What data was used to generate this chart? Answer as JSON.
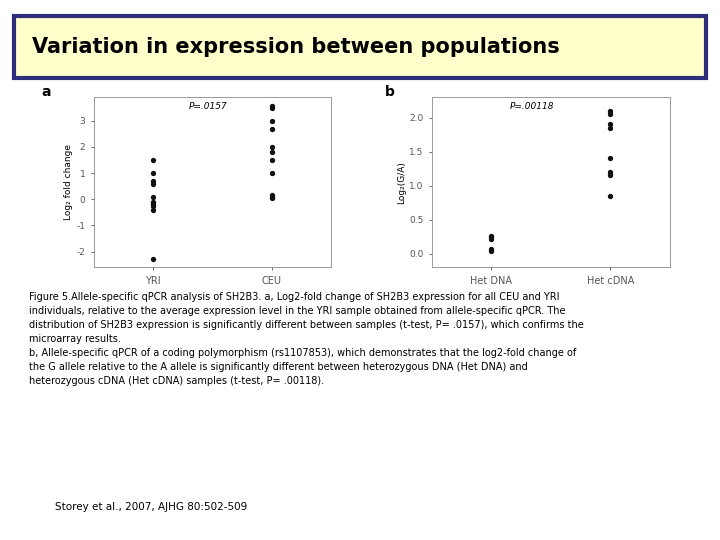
{
  "title": "Variation in expression between populations",
  "title_bg": "#ffffcc",
  "title_border": "#2d2d7a",
  "title_fontsize": 15,
  "panel_a_label": "a",
  "panel_a_xlabel_cats": [
    "YRI",
    "CEU"
  ],
  "panel_a_ylabel": "Log₂ fold change",
  "panel_a_pvalue": "P=.0157",
  "panel_a_yticks": [
    -2,
    -1,
    0,
    1,
    2,
    3
  ],
  "panel_a_ylim": [
    -2.6,
    3.9
  ],
  "panel_a_yri_points": [
    -2.3,
    -0.4,
    -0.25,
    -0.2,
    -0.1,
    0.1,
    0.6,
    0.7,
    1.0,
    1.5
  ],
  "panel_a_ceu_points": [
    0.05,
    0.1,
    0.15,
    1.0,
    1.5,
    1.8,
    2.0,
    2.7,
    3.0,
    3.5,
    3.55
  ],
  "panel_b_label": "b",
  "panel_b_xlabel_cats": [
    "Het DNA",
    "Het cDNA"
  ],
  "panel_b_ylabel": "Log₂(G/A)",
  "panel_b_pvalue": "P=.00118",
  "panel_b_yticks": [
    0.0,
    0.5,
    1.0,
    1.5,
    2.0
  ],
  "panel_b_ylim": [
    -0.2,
    2.3
  ],
  "panel_b_hetdna_points": [
    0.04,
    0.07,
    0.22,
    0.24,
    0.26
  ],
  "panel_b_hetcdna_points": [
    0.85,
    1.15,
    1.2,
    1.4,
    1.85,
    1.9,
    2.05,
    2.1
  ],
  "caption_lines": [
    "Figure 5.Allele-specific qPCR analysis of {SH2B3}. a, Log2-fold change of {SH2B3} expression for all CEU and YRI",
    "individuals, relative to the average expression level in the YRI sample obtained from allele-specific qPCR. The",
    "distribution of {SH2B3} expression is significantly different between samples (t-test, {P=} .0157), which confirms the",
    "microarray results.",
    "b, Allele-specific qPCR of a coding polymorphism (rs1107853), which demonstrates that the log2-fold change of",
    "the G allele relative to the A allele is significantly different between heterozygous DNA (Het DNA) and",
    "heterozygous cDNA (Het cDNA) samples (t-test, {P=} .00118)."
  ],
  "citation": "Storey et al., 2007, AJHG 80:502-509",
  "dot_color": "#111111",
  "dot_size": 8,
  "panel_bg": "#ffffff",
  "axis_color": "#aaaaaa",
  "font_color": "#000000"
}
